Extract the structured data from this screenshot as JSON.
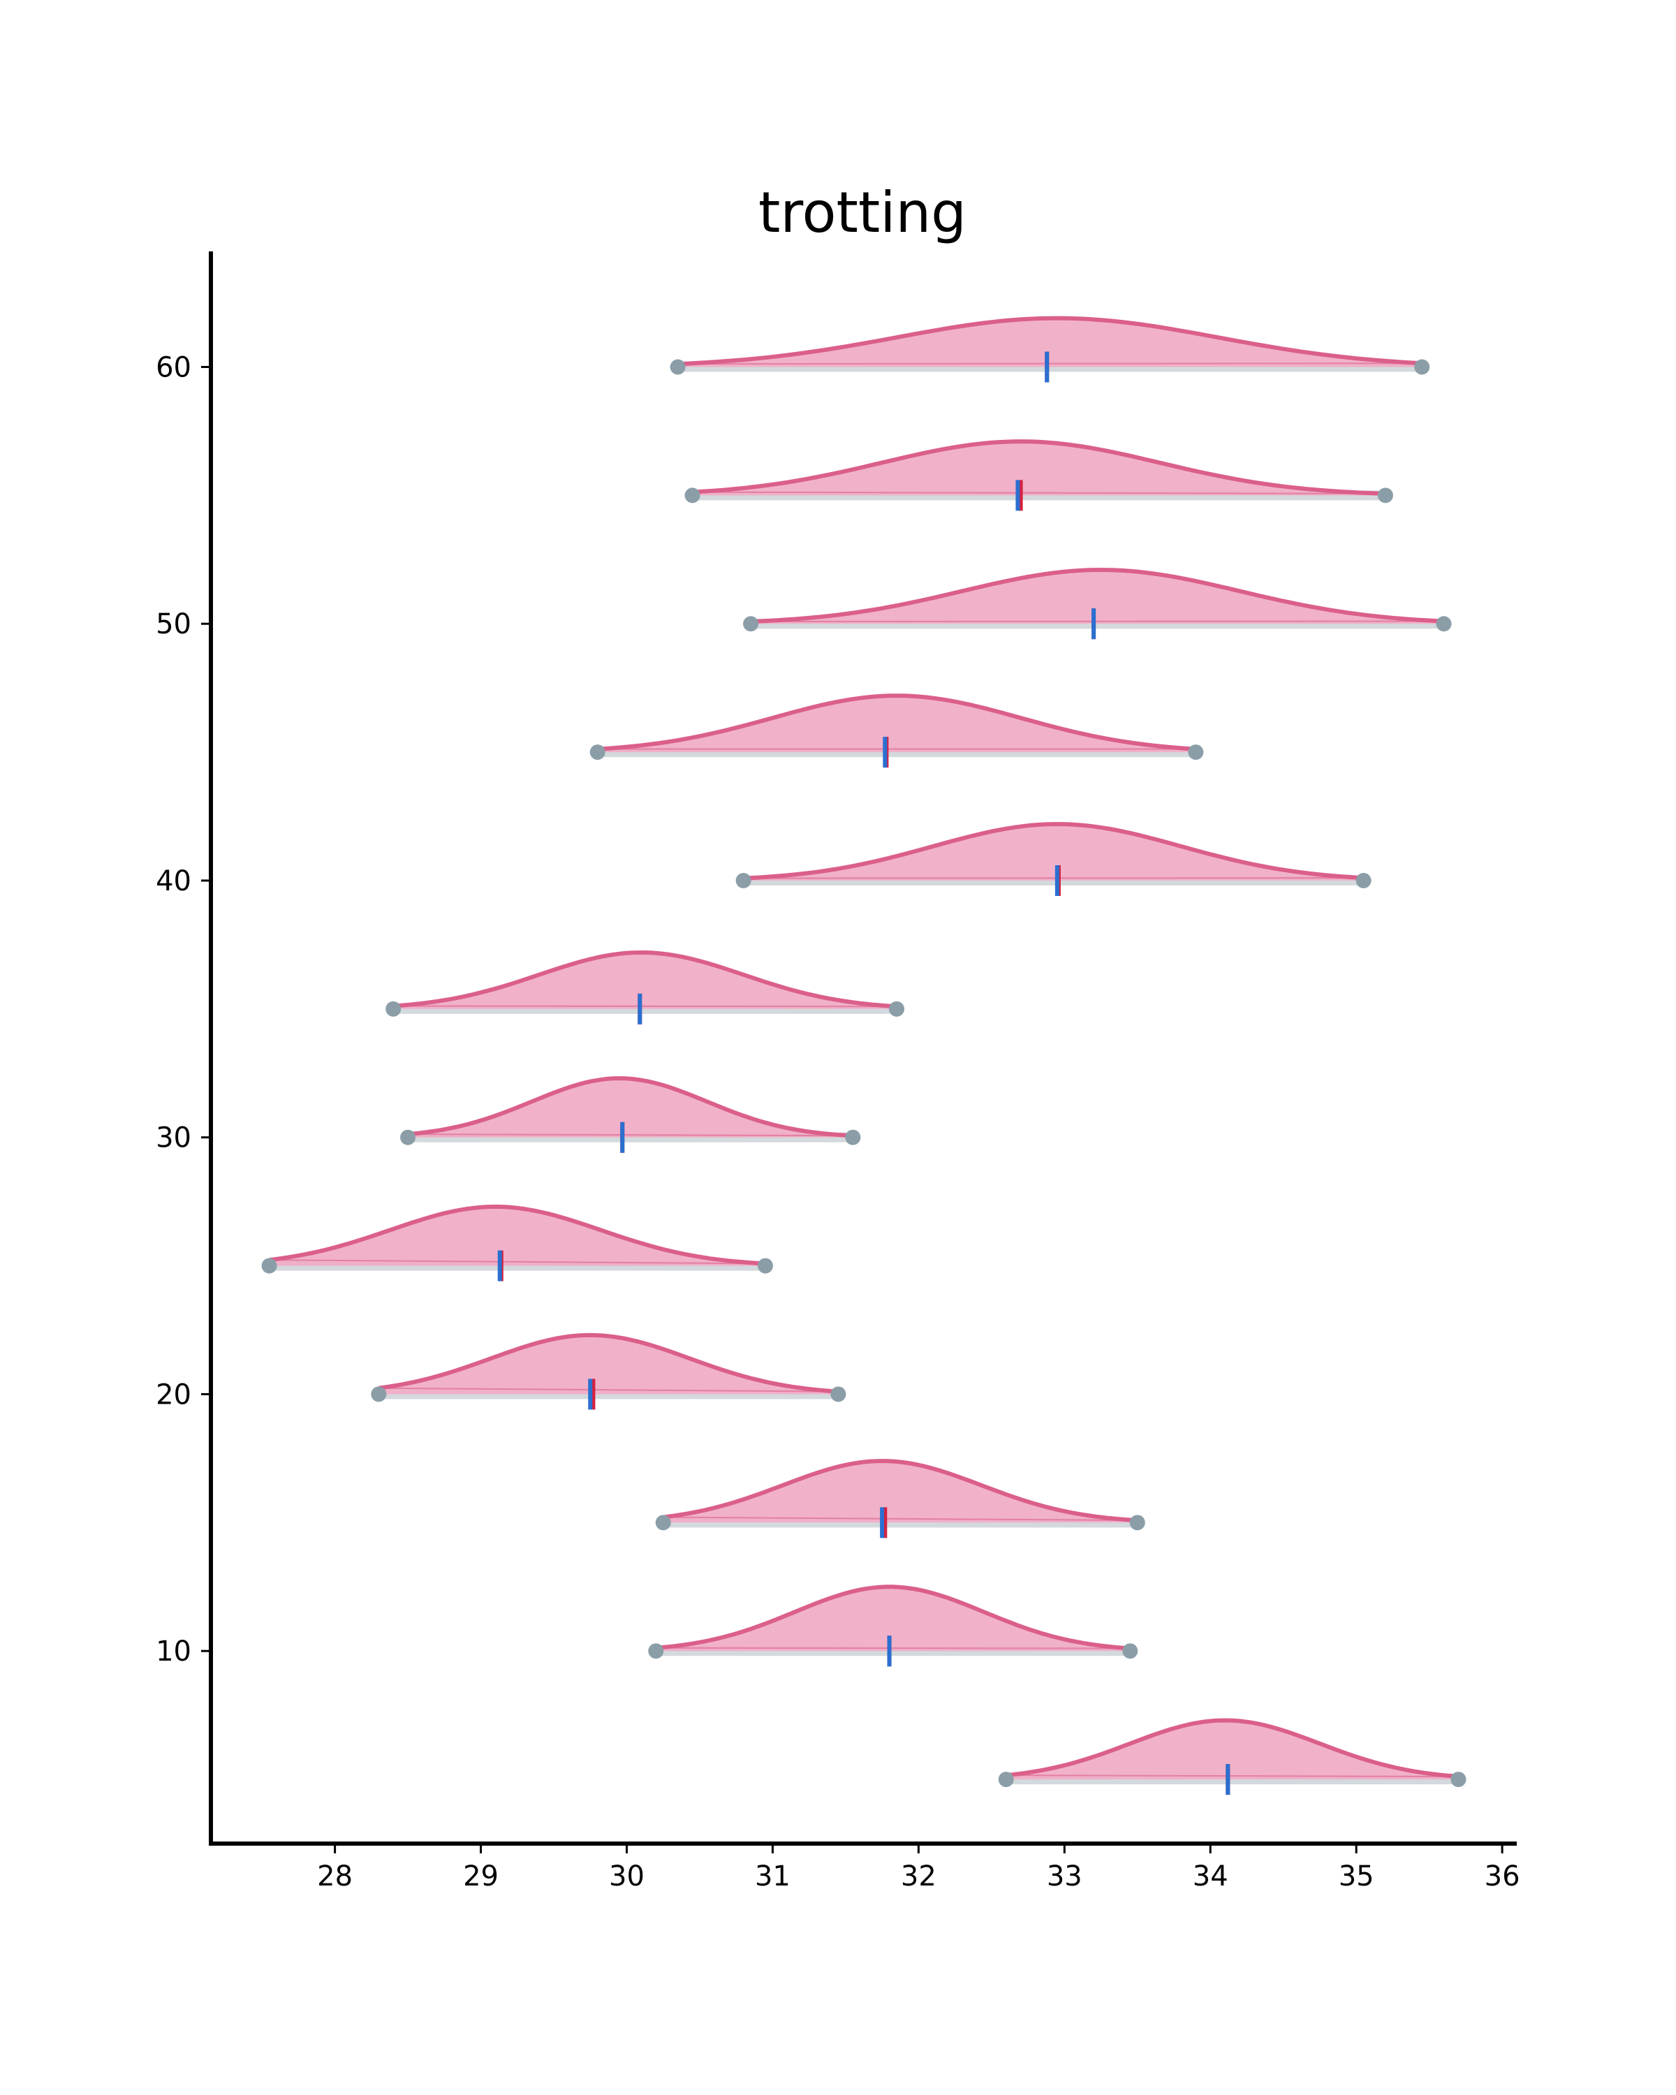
{
  "chart_data": {
    "type": "ridgeline",
    "title": "trotting",
    "xlabel": "",
    "ylabel": "",
    "xlim": [
      27.15,
      36.1
    ],
    "ylim": [
      2.5,
      64.5
    ],
    "xticks": [
      28,
      29,
      30,
      31,
      32,
      33,
      34,
      35,
      36
    ],
    "yticks": [
      10,
      20,
      30,
      40,
      50,
      60
    ],
    "grid": false,
    "colors": {
      "fill": "#f0aec6",
      "line": "#db5f8b",
      "range": "#d3d9dd",
      "endpoint": "#8b9ea8",
      "mean": "#d5213f",
      "median": "#2b6fd0",
      "axis": "#000000"
    },
    "series": [
      {
        "y": 5,
        "min": 32.6,
        "max": 35.7,
        "mean": 34.12,
        "median": 34.12,
        "peak": 34.1,
        "sd": 0.65,
        "height": 2.3
      },
      {
        "y": 10,
        "min": 30.2,
        "max": 33.45,
        "mean": 31.8,
        "median": 31.8,
        "peak": 31.8,
        "sd": 0.65,
        "height": 2.5
      },
      {
        "y": 15,
        "min": 30.25,
        "max": 33.5,
        "mean": 31.77,
        "median": 31.75,
        "peak": 31.75,
        "sd": 0.68,
        "height": 2.4
      },
      {
        "y": 20,
        "min": 28.3,
        "max": 31.45,
        "mean": 29.77,
        "median": 29.75,
        "peak": 29.75,
        "sd": 0.68,
        "height": 2.3
      },
      {
        "y": 25,
        "min": 27.55,
        "max": 30.95,
        "mean": 29.14,
        "median": 29.13,
        "peak": 29.1,
        "sd": 0.72,
        "height": 2.3
      },
      {
        "y": 30,
        "min": 28.5,
        "max": 31.55,
        "mean": 29.97,
        "median": 29.97,
        "peak": 29.95,
        "sd": 0.6,
        "height": 2.3
      },
      {
        "y": 35,
        "min": 28.4,
        "max": 31.85,
        "mean": 30.09,
        "median": 30.09,
        "peak": 30.1,
        "sd": 0.7,
        "height": 2.2
      },
      {
        "y": 40,
        "min": 30.8,
        "max": 35.05,
        "mean": 32.96,
        "median": 32.95,
        "peak": 32.95,
        "sd": 0.85,
        "height": 2.2
      },
      {
        "y": 45,
        "min": 29.8,
        "max": 33.9,
        "mean": 31.78,
        "median": 31.77,
        "peak": 31.85,
        "sd": 0.85,
        "height": 2.2
      },
      {
        "y": 50,
        "min": 30.85,
        "max": 35.6,
        "mean": 33.2,
        "median": 33.2,
        "peak": 33.25,
        "sd": 0.95,
        "height": 2.1
      },
      {
        "y": 55,
        "min": 30.45,
        "max": 35.2,
        "mean": 32.7,
        "median": 32.68,
        "peak": 32.7,
        "sd": 0.95,
        "height": 2.1
      },
      {
        "y": 60,
        "min": 30.35,
        "max": 35.45,
        "mean": 32.88,
        "median": 32.88,
        "peak": 32.95,
        "sd": 1.1,
        "height": 1.9
      }
    ]
  }
}
